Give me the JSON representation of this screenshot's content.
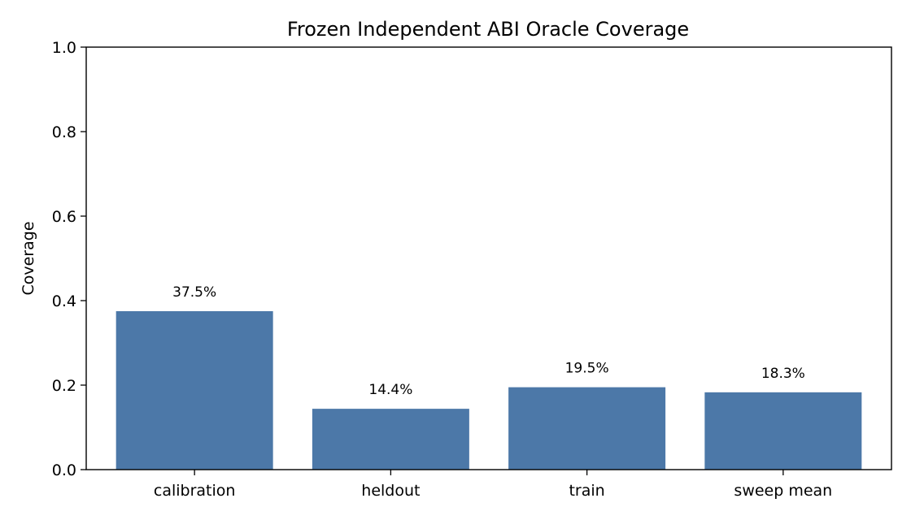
{
  "chart_data": {
    "type": "bar",
    "title": "Frozen Independent ABI Oracle Coverage",
    "xlabel": "",
    "ylabel": "Coverage",
    "categories": [
      "calibration",
      "heldout",
      "train",
      "sweep mean"
    ],
    "values": [
      0.375,
      0.144,
      0.195,
      0.183
    ],
    "data_labels": [
      "37.5%",
      "14.4%",
      "19.5%",
      "18.3%"
    ],
    "ylim": [
      0,
      1.0
    ],
    "yticks": [
      0.0,
      0.2,
      0.4,
      0.6,
      0.8,
      1.0
    ],
    "ytick_labels": [
      "0.0",
      "0.2",
      "0.4",
      "0.6",
      "0.8",
      "1.0"
    ],
    "grid": false,
    "legend": "none",
    "bar_color": "#4c78a8"
  }
}
